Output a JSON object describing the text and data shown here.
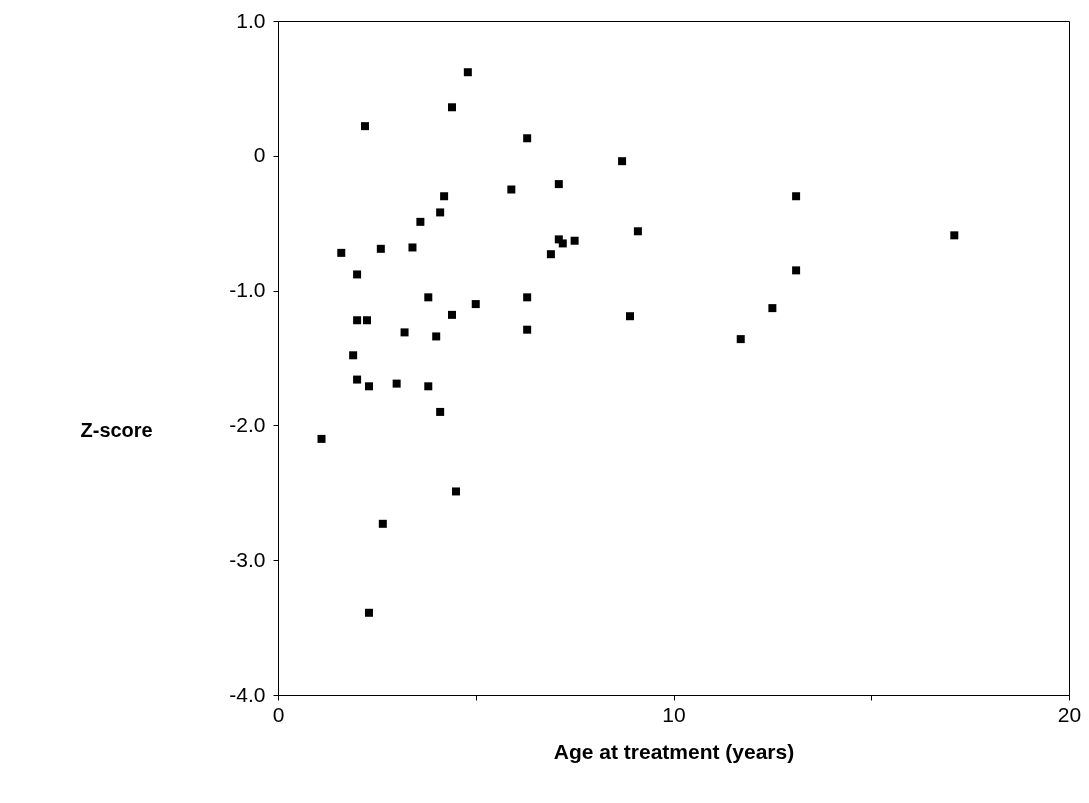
{
  "chart_data": {
    "type": "scatter",
    "xlabel": "Age at treatment (years)",
    "ylabel": "Z-score",
    "xlim": [
      0,
      20
    ],
    "ylim": [
      -4,
      1
    ],
    "xticks": [
      0,
      {
        "value": 5,
        "label": null
      },
      10,
      {
        "value": 15,
        "label": null
      },
      20
    ],
    "yticks": [
      {
        "value": -4,
        "label": "-4.0"
      },
      {
        "value": -3,
        "label": "-3.0"
      },
      {
        "value": -2,
        "label": "-2.0"
      },
      {
        "value": -1,
        "label": "-1.0"
      },
      0,
      {
        "value": 1,
        "label": "1.0"
      }
    ],
    "grid": false,
    "marker": "square",
    "series": [
      {
        "color": "#000000",
        "x": [
          1.1,
          1.6,
          1.9,
          2.0,
          2.0,
          2.0,
          2.25,
          2.2,
          2.3,
          2.3,
          2.6,
          2.65,
          3.0,
          3.2,
          3.4,
          3.6,
          3.8,
          3.8,
          4.0,
          4.1,
          4.1,
          4.2,
          4.4,
          4.4,
          4.5,
          4.8,
          5.0,
          5.9,
          6.3,
          6.3,
          6.3,
          6.9,
          7.1,
          7.1,
          7.2,
          7.5,
          8.7,
          8.9,
          9.1,
          11.7,
          12.5,
          13.1,
          13.1,
          17.1
        ],
        "values": [
          -2.1,
          -0.72,
          -1.48,
          -0.88,
          -1.66,
          -1.22,
          -1.22,
          0.22,
          -1.71,
          -3.39,
          -0.69,
          -2.73,
          -1.69,
          -1.31,
          -0.68,
          -0.49,
          -1.05,
          -1.71,
          -1.34,
          -0.42,
          -1.9,
          -0.3,
          0.36,
          -1.18,
          -2.49,
          0.62,
          -1.1,
          -0.25,
          -1.05,
          0.13,
          -1.29,
          -0.73,
          -0.21,
          -0.62,
          -0.65,
          -0.63,
          -0.04,
          -1.19,
          -0.56,
          -1.36,
          -1.13,
          -0.85,
          -0.3,
          -0.59
        ]
      }
    ]
  }
}
